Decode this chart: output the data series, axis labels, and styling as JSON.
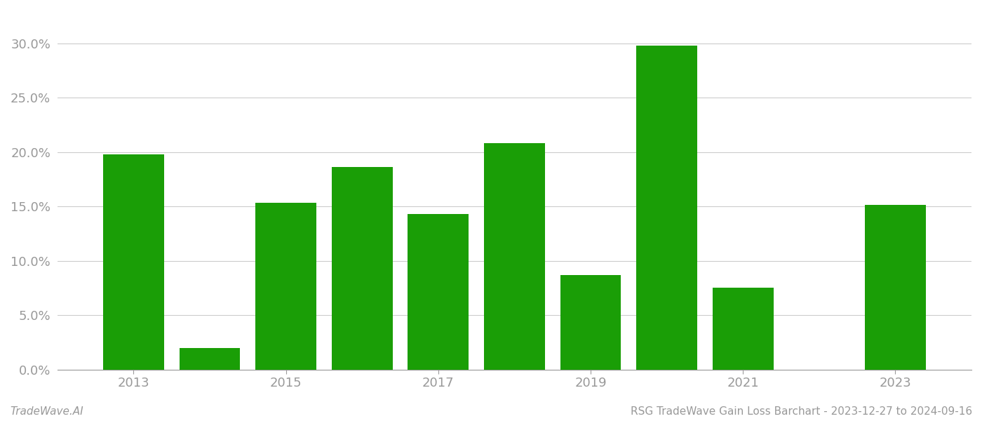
{
  "years": [
    2013,
    2014,
    2015,
    2016,
    2017,
    2018,
    2019,
    2020,
    2021,
    2022,
    2023
  ],
  "values": [
    0.198,
    0.02,
    0.153,
    0.186,
    0.143,
    0.208,
    0.087,
    0.298,
    0.075,
    0.0,
    0.151
  ],
  "bar_color": "#1a9e06",
  "background_color": "#ffffff",
  "grid_color": "#cccccc",
  "axis_label_color": "#999999",
  "ylim": [
    0,
    0.33
  ],
  "yticks": [
    0.0,
    0.05,
    0.1,
    0.15,
    0.2,
    0.25,
    0.3
  ],
  "ytick_labels": [
    "0.0%",
    "5.0%",
    "10.0%",
    "15.0%",
    "20.0%",
    "25.0%",
    "30.0%"
  ],
  "xtick_years": [
    2013,
    2015,
    2017,
    2019,
    2021,
    2023
  ],
  "footer_left": "TradeWave.AI",
  "footer_right": "RSG TradeWave Gain Loss Barchart - 2023-12-27 to 2024-09-16",
  "footer_fontsize": 11,
  "tick_fontsize": 13,
  "bar_width": 0.8
}
